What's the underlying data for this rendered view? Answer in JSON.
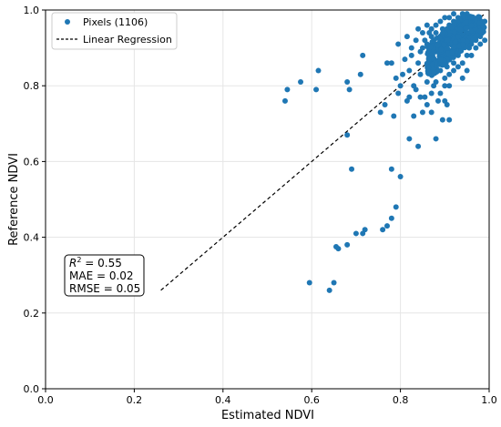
{
  "chart_data": {
    "type": "scatter",
    "xlabel": "Estimated NDVI",
    "ylabel": "Reference NDVI",
    "xlim": [
      0.0,
      1.0
    ],
    "ylim": [
      0.0,
      1.0
    ],
    "xticks": [
      "0.0",
      "0.2",
      "0.4",
      "0.6",
      "0.8",
      "1.0"
    ],
    "yticks": [
      "0.0",
      "0.2",
      "0.4",
      "0.6",
      "0.8",
      "1.0"
    ],
    "grid": true,
    "legend_position": "top-left",
    "series": [
      {
        "name": "Pixels (1106)",
        "kind": "scatter",
        "color": "#1f77b4",
        "points": [
          [
            0.54,
            0.76
          ],
          [
            0.545,
            0.79
          ],
          [
            0.575,
            0.81
          ],
          [
            0.61,
            0.79
          ],
          [
            0.615,
            0.84
          ],
          [
            0.68,
            0.81
          ],
          [
            0.685,
            0.79
          ],
          [
            0.71,
            0.83
          ],
          [
            0.715,
            0.88
          ],
          [
            0.755,
            0.73
          ],
          [
            0.765,
            0.75
          ],
          [
            0.77,
            0.86
          ],
          [
            0.78,
            0.86
          ],
          [
            0.785,
            0.72
          ],
          [
            0.79,
            0.82
          ],
          [
            0.795,
            0.78
          ],
          [
            0.795,
            0.91
          ],
          [
            0.8,
            0.8
          ],
          [
            0.805,
            0.83
          ],
          [
            0.81,
            0.87
          ],
          [
            0.815,
            0.76
          ],
          [
            0.82,
            0.84
          ],
          [
            0.825,
            0.88
          ],
          [
            0.83,
            0.72
          ],
          [
            0.835,
            0.79
          ],
          [
            0.84,
            0.86
          ],
          [
            0.845,
            0.83
          ],
          [
            0.85,
            0.9
          ],
          [
            0.855,
            0.77
          ],
          [
            0.86,
            0.81
          ],
          [
            0.865,
            0.87
          ],
          [
            0.87,
            0.93
          ],
          [
            0.875,
            0.84
          ],
          [
            0.88,
            0.89
          ],
          [
            0.885,
            0.76
          ],
          [
            0.89,
            0.92
          ],
          [
            0.895,
            0.95
          ],
          [
            0.9,
            0.86
          ],
          [
            0.905,
            0.88
          ],
          [
            0.91,
            0.91
          ],
          [
            0.915,
            0.94
          ],
          [
            0.92,
            0.89
          ],
          [
            0.925,
            0.96
          ],
          [
            0.93,
            0.93
          ],
          [
            0.935,
            0.9
          ],
          [
            0.94,
            0.95
          ],
          [
            0.945,
            0.97
          ],
          [
            0.95,
            0.94
          ],
          [
            0.955,
            0.96
          ],
          [
            0.96,
            0.98
          ],
          [
            0.965,
            0.95
          ],
          [
            0.97,
            0.97
          ],
          [
            0.975,
            0.96
          ],
          [
            0.98,
            0.97
          ],
          [
            0.88,
            0.81
          ],
          [
            0.89,
            0.84
          ],
          [
            0.9,
            0.8
          ],
          [
            0.91,
            0.83
          ],
          [
            0.92,
            0.86
          ],
          [
            0.93,
            0.88
          ],
          [
            0.86,
            0.91
          ],
          [
            0.87,
            0.88
          ],
          [
            0.88,
            0.94
          ],
          [
            0.9,
            0.93
          ],
          [
            0.91,
            0.96
          ],
          [
            0.92,
            0.97
          ],
          [
            0.93,
            0.98
          ],
          [
            0.94,
            0.96
          ],
          [
            0.95,
            0.98
          ],
          [
            0.96,
            0.94
          ],
          [
            0.97,
            0.93
          ],
          [
            0.98,
            0.95
          ],
          [
            0.99,
            0.97
          ],
          [
            0.905,
            0.85
          ],
          [
            0.915,
            0.88
          ],
          [
            0.925,
            0.91
          ],
          [
            0.935,
            0.94
          ],
          [
            0.945,
            0.92
          ],
          [
            0.955,
            0.9
          ],
          [
            0.895,
            0.87
          ],
          [
            0.885,
            0.9
          ],
          [
            0.875,
            0.92
          ],
          [
            0.865,
            0.94
          ],
          [
            0.855,
            0.92
          ],
          [
            0.845,
            0.89
          ],
          [
            0.835,
            0.92
          ],
          [
            0.825,
            0.9
          ],
          [
            0.815,
            0.93
          ],
          [
            0.9,
            0.98
          ],
          [
            0.91,
            0.98
          ],
          [
            0.92,
            0.99
          ],
          [
            0.93,
            0.97
          ],
          [
            0.94,
            0.99
          ],
          [
            0.95,
            0.99
          ],
          [
            0.96,
            0.97
          ],
          [
            0.89,
            0.97
          ],
          [
            0.88,
            0.96
          ],
          [
            0.87,
            0.95
          ],
          [
            0.86,
            0.96
          ],
          [
            0.85,
            0.94
          ],
          [
            0.84,
            0.95
          ],
          [
            0.92,
            0.93
          ],
          [
            0.93,
            0.92
          ],
          [
            0.94,
            0.93
          ],
          [
            0.95,
            0.92
          ],
          [
            0.96,
            0.91
          ],
          [
            0.97,
            0.92
          ],
          [
            0.98,
            0.93
          ],
          [
            0.905,
            0.95
          ],
          [
            0.915,
            0.92
          ],
          [
            0.925,
            0.94
          ],
          [
            0.935,
            0.96
          ],
          [
            0.945,
            0.95
          ],
          [
            0.955,
            0.93
          ],
          [
            0.9,
            0.76
          ],
          [
            0.905,
            0.75
          ],
          [
            0.91,
            0.71
          ],
          [
            0.895,
            0.71
          ],
          [
            0.88,
            0.66
          ],
          [
            0.87,
            0.73
          ],
          [
            0.86,
            0.75
          ],
          [
            0.85,
            0.73
          ],
          [
            0.845,
            0.77
          ],
          [
            0.84,
            0.64
          ],
          [
            0.82,
            0.66
          ],
          [
            0.82,
            0.77
          ],
          [
            0.83,
            0.8
          ],
          [
            0.87,
            0.78
          ],
          [
            0.875,
            0.8
          ],
          [
            0.89,
            0.78
          ],
          [
            0.9,
            0.82
          ],
          [
            0.91,
            0.8
          ],
          [
            0.92,
            0.84
          ],
          [
            0.93,
            0.85
          ],
          [
            0.94,
            0.86
          ],
          [
            0.95,
            0.88
          ],
          [
            0.96,
            0.88
          ],
          [
            0.97,
            0.9
          ],
          [
            0.98,
            0.91
          ],
          [
            0.99,
            0.92
          ],
          [
            0.94,
            0.82
          ],
          [
            0.95,
            0.84
          ],
          [
            0.68,
            0.67
          ],
          [
            0.69,
            0.58
          ],
          [
            0.78,
            0.58
          ],
          [
            0.8,
            0.56
          ],
          [
            0.79,
            0.48
          ],
          [
            0.78,
            0.45
          ],
          [
            0.77,
            0.43
          ],
          [
            0.76,
            0.42
          ],
          [
            0.72,
            0.42
          ],
          [
            0.715,
            0.41
          ],
          [
            0.7,
            0.41
          ],
          [
            0.68,
            0.38
          ],
          [
            0.66,
            0.37
          ],
          [
            0.655,
            0.375
          ],
          [
            0.65,
            0.28
          ],
          [
            0.64,
            0.26
          ],
          [
            0.595,
            0.28
          ]
        ]
      },
      {
        "name": "Linear Regression",
        "kind": "line",
        "style": "dashed",
        "color": "#000000",
        "points": [
          [
            0.26,
            0.26
          ],
          [
            0.99,
            0.99
          ]
        ]
      }
    ],
    "stats_box": {
      "r2": "R",
      "r2_sup": "2",
      "r2_value": " = 0.55",
      "mae": "MAE = 0.02",
      "rmse": "RMSE = 0.05"
    }
  }
}
